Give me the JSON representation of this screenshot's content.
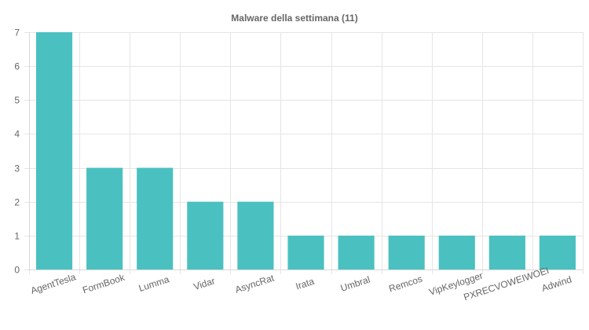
{
  "chart_data": {
    "type": "bar",
    "title": "Malware della settimana (11)",
    "categories": [
      "AgentTesla",
      "FormBook",
      "Lumma",
      "Vidar",
      "AsyncRat",
      "Irata",
      "Umbral",
      "Remcos",
      "VipKeylogger",
      "PXRECVOWEIWOEI",
      "Adwind"
    ],
    "values": [
      7,
      3,
      3,
      2,
      2,
      1,
      1,
      1,
      1,
      1,
      1
    ],
    "xlabel": "",
    "ylabel": "",
    "ylim": [
      0,
      7
    ],
    "yticks": [
      "0",
      "1",
      "2",
      "3",
      "4",
      "5",
      "6",
      "7"
    ],
    "grid": true,
    "legend": "none",
    "colors": {
      "bar": "#4bc0c0",
      "grid": "#e5e5e5",
      "text": "#666666"
    }
  }
}
